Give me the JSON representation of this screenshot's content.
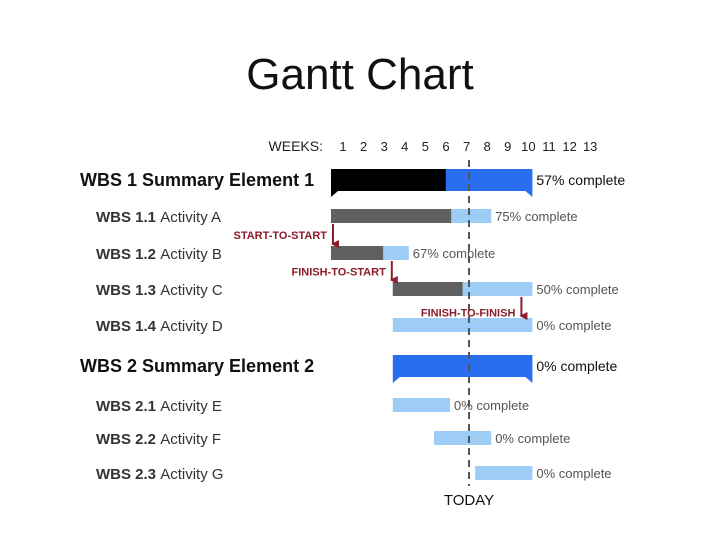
{
  "title": "Gantt Chart",
  "chart_data": {
    "type": "gantt",
    "title": "Gantt Chart",
    "weeks_label": "WEEKS:",
    "weeks": [
      1,
      2,
      3,
      4,
      5,
      6,
      7,
      8,
      9,
      10,
      11,
      12,
      13
    ],
    "today_label": "TODAY",
    "today_week": 7.7,
    "colors": {
      "summary_done": "#000000",
      "summary_remaining": "#2a6ef0",
      "activity_done": "#606060",
      "activity_remaining": "#9dcdf7",
      "dependency": "#8b1c2b",
      "today_line": "#555555"
    },
    "rows": [
      {
        "kind": "summary",
        "code": "WBS 1",
        "name": "Summary Element 1",
        "start_week": 1,
        "end_week": 10,
        "percent": 57,
        "pct_text": "57% complete"
      },
      {
        "kind": "activity",
        "code": "WBS 1.1",
        "name": "Activity A",
        "start_week": 1,
        "end_week": 8,
        "percent": 75,
        "pct_text": "75% complete"
      },
      {
        "kind": "activity",
        "code": "WBS 1.2",
        "name": "Activity B",
        "start_week": 1,
        "end_week": 4,
        "percent": 67,
        "pct_text": "67% complete"
      },
      {
        "kind": "activity",
        "code": "WBS 1.3",
        "name": "Activity C",
        "start_week": 4,
        "end_week": 10,
        "percent": 50,
        "pct_text": "50% complete"
      },
      {
        "kind": "activity",
        "code": "WBS 1.4",
        "name": "Activity D",
        "start_week": 4,
        "end_week": 10,
        "percent": 0,
        "pct_text": "0% complete"
      },
      {
        "kind": "summary",
        "code": "WBS 2",
        "name": "Summary Element 2",
        "start_week": 4,
        "end_week": 10,
        "percent": 0,
        "pct_text": "0% complete"
      },
      {
        "kind": "activity",
        "code": "WBS 2.1",
        "name": "Activity E",
        "start_week": 4,
        "end_week": 6,
        "percent": 0,
        "pct_text": "0% complete"
      },
      {
        "kind": "activity",
        "code": "WBS 2.2",
        "name": "Activity F",
        "start_week": 6,
        "end_week": 8,
        "percent": 0,
        "pct_text": "0% complete"
      },
      {
        "kind": "activity",
        "code": "WBS 2.3",
        "name": "Activity G",
        "start_week": 8,
        "end_week": 10,
        "percent": 0,
        "pct_text": "0% complete"
      }
    ],
    "dependencies": [
      {
        "label": "START-TO-START",
        "from_row": 1,
        "to_row": 2,
        "at_week": 1
      },
      {
        "label": "FINISH-TO-START",
        "from_row": 2,
        "to_row": 3,
        "at_week": 4
      },
      {
        "label": "FINISH-TO-FINISH",
        "from_row": 3,
        "to_row": 4,
        "at_week": 10
      }
    ]
  }
}
